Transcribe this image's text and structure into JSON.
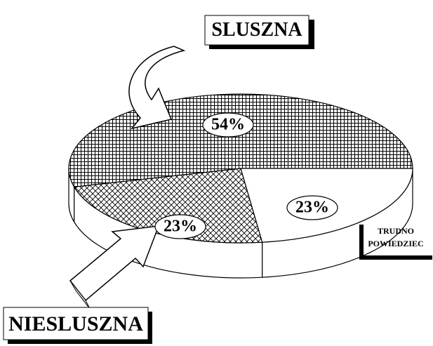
{
  "chart_data": {
    "type": "pie",
    "categories": [
      "SLUSZNA",
      "TRUDNO POWIEDZIEC",
      "NIESLUSZNA"
    ],
    "values": [
      54,
      23,
      23
    ],
    "value_labels": [
      "54%",
      "23%",
      "23%"
    ],
    "slice_order": [
      0,
      2,
      1
    ],
    "patterns": [
      "grid",
      "none",
      "crosshatch"
    ]
  }
}
